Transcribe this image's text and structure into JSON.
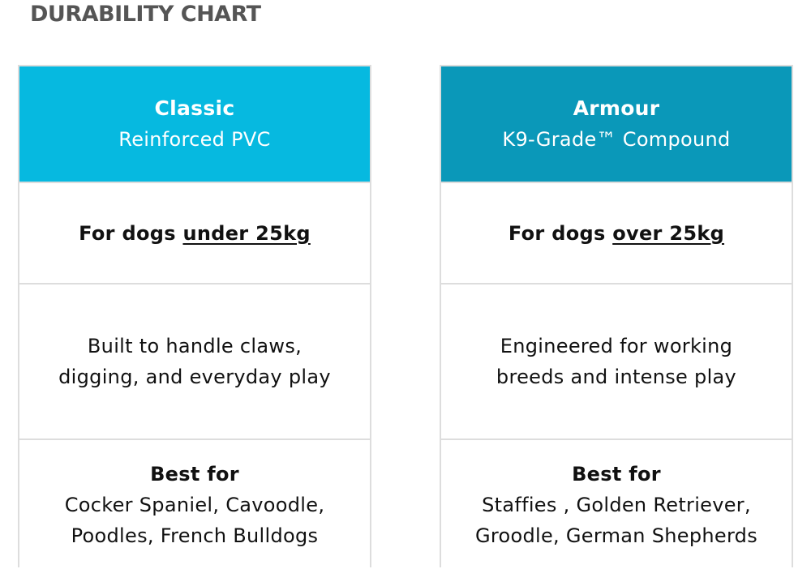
{
  "title": "DURABILITY CHART",
  "cards": [
    {
      "name": "Classic",
      "material": "Reinforced PVC",
      "weight_prefix": "For dogs",
      "weight_emphasis": "under 25kg",
      "description_lines": [
        "Built to handle claws,",
        "digging, and everyday play"
      ],
      "best_for_label": "Best for",
      "best_for_lines": [
        "Cocker Spaniel, Cavoodle,",
        "Poodles, French Bulldogs"
      ]
    },
    {
      "name": "Armour",
      "material": "K9-Grade™ Compound",
      "weight_prefix": "For dogs",
      "weight_emphasis": "over 25kg",
      "description_lines": [
        "Engineered for working",
        "breeds and intense play"
      ],
      "best_for_label": "Best for",
      "best_for_lines": [
        "Staffies , Golden Retriever,",
        "Groodle, German Shepherds"
      ]
    }
  ]
}
